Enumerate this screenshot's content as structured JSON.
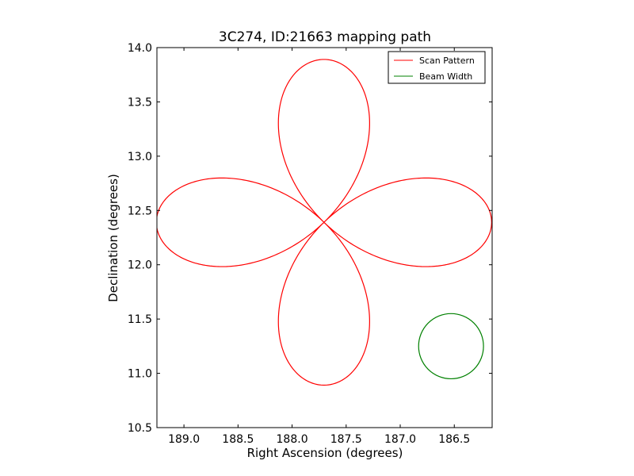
{
  "chart_data": {
    "type": "line",
    "title": "3C274, ID:21663 mapping path",
    "xlabel": "Right Ascension (degrees)",
    "ylabel": "Declination (degrees)",
    "xlim": [
      189.25,
      186.15
    ],
    "ylim": [
      10.5,
      14.0
    ],
    "x_ticks": [
      189.0,
      188.5,
      188.0,
      187.5,
      187.0,
      186.5
    ],
    "x_tick_labels": [
      "189.0",
      "188.5",
      "188.0",
      "187.5",
      "187.0",
      "186.5"
    ],
    "y_ticks": [
      10.5,
      11.0,
      11.5,
      12.0,
      12.5,
      13.0,
      13.5,
      14.0
    ],
    "y_tick_labels": [
      "10.5",
      "11.0",
      "11.5",
      "12.0",
      "12.5",
      "13.0",
      "13.5",
      "14.0"
    ],
    "grid": false,
    "legend_position": "top-right",
    "center": {
      "ra": 187.705,
      "dec": 12.391
    },
    "series": [
      {
        "name": "Scan Pattern",
        "color": "#ff0000",
        "shape": "four-petal rose (quadrifolium)",
        "petal_extent_ra": 1.55,
        "petal_extent_dec": 1.5
      },
      {
        "name": "Beam Width",
        "color": "#008000",
        "shape": "circle",
        "center": {
          "ra": 186.53,
          "dec": 11.25
        },
        "radius": 0.3
      }
    ]
  }
}
